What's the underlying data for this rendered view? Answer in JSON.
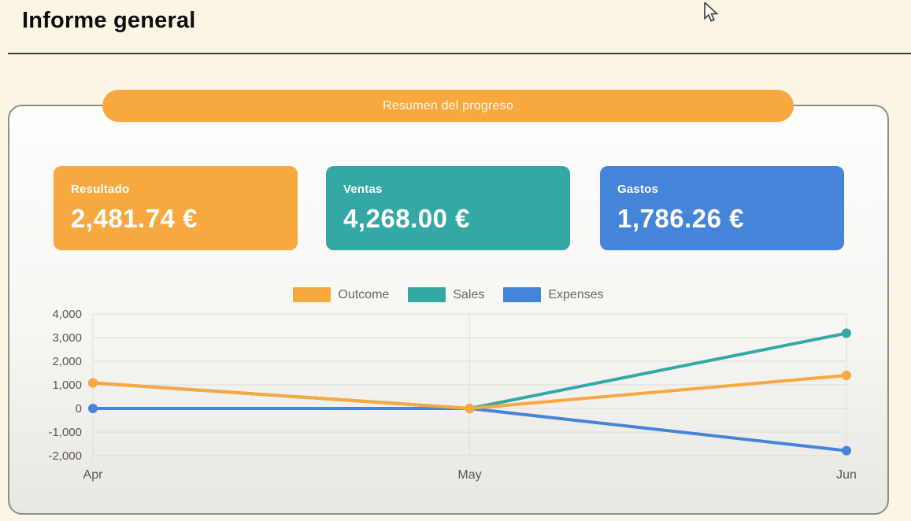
{
  "page": {
    "title": "Informe general"
  },
  "banner": {
    "label": "Resumen del progreso"
  },
  "stats": [
    {
      "label": "Resultado",
      "value": "2,481.74 €",
      "color": "#F7A83E"
    },
    {
      "label": "Ventas",
      "value": "4,268.00 €",
      "color": "#33A8A5"
    },
    {
      "label": "Gastos",
      "value": "1,786.26 €",
      "color": "#4585D9"
    }
  ],
  "chart_data": {
    "type": "line",
    "x": [
      "Apr",
      "May",
      "Jun"
    ],
    "series": [
      {
        "name": "Outcome",
        "color": "#F7A83E",
        "values": [
          1081.74,
          0,
          1400.0
        ]
      },
      {
        "name": "Sales",
        "color": "#33A8A5",
        "values": [
          1081.74,
          0,
          3186.26
        ]
      },
      {
        "name": "Expenses",
        "color": "#4585D9",
        "values": [
          0,
          0,
          -1786.26
        ]
      }
    ],
    "ylim": [
      -2000,
      4000
    ],
    "ytick_step": 1000,
    "ytick_labels": [
      "4,000",
      "3,000",
      "2,000",
      "1,000",
      "0",
      "-1,000",
      "-2,000"
    ],
    "legend_position": "top",
    "grid": true,
    "title": "",
    "xlabel": "",
    "ylabel": ""
  },
  "colors": {
    "page_background": "#FBF6E4",
    "banner": "#F7A940",
    "gridline": "#e2e1de"
  }
}
